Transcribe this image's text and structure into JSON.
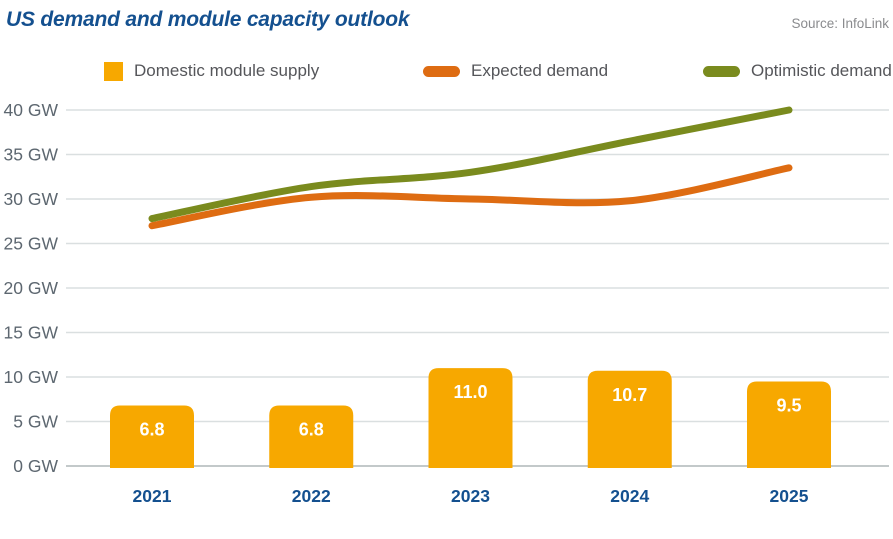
{
  "header": {
    "title": "US demand and module capacity outlook",
    "source": "Source: InfoLink"
  },
  "legend": {
    "items": [
      {
        "label": "Domestic module supply",
        "swatch": "square",
        "color": "#F7A800"
      },
      {
        "label": "Expected demand",
        "swatch": "line",
        "color": "#DE6C12"
      },
      {
        "label": "Optimistic demand",
        "swatch": "line",
        "color": "#7A8B1E"
      }
    ]
  },
  "chart_data": {
    "type": "bar+line",
    "title": "US demand and module capacity outlook",
    "source": "Source: InfoLink",
    "categories": [
      "2021",
      "2022",
      "2023",
      "2024",
      "2025"
    ],
    "bar_series": {
      "name": "Domestic module supply",
      "unit": "GW",
      "color": "#F7A800",
      "values": [
        6.8,
        6.8,
        11.0,
        10.7,
        9.5
      ],
      "labels": [
        "6.8",
        "6.8",
        "11.0",
        "10.7",
        "9.5"
      ],
      "label_color": "#FFFFFF"
    },
    "line_series": [
      {
        "name": "Expected demand",
        "unit": "GW",
        "color": "#DE6C12",
        "values": [
          27,
          30.2,
          30,
          29.8,
          33.5
        ]
      },
      {
        "name": "Optimistic demand",
        "unit": "GW",
        "color": "#7A8B1E",
        "values": [
          27.8,
          31.4,
          33,
          36.5,
          40
        ]
      }
    ],
    "xlabel": "",
    "ylabel": "",
    "ylim": [
      0,
      40
    ],
    "yticks": [
      {
        "value": 0,
        "label": "0 GW"
      },
      {
        "value": 5,
        "label": "5 GW"
      },
      {
        "value": 10,
        "label": "10 GW"
      },
      {
        "value": 15,
        "label": "15 GW"
      },
      {
        "value": 20,
        "label": "20 GW"
      },
      {
        "value": 25,
        "label": "25 GW"
      },
      {
        "value": 30,
        "label": "30 GW"
      },
      {
        "value": 35,
        "label": "35 GW"
      },
      {
        "value": 40,
        "label": "40 GW"
      }
    ],
    "grid": true,
    "legend_position": "top",
    "xtick_color": "#14508F",
    "ytick_color": "#5D6770",
    "gridline_color": "#DADFE0",
    "baseline_color": "#C3C9CA"
  }
}
